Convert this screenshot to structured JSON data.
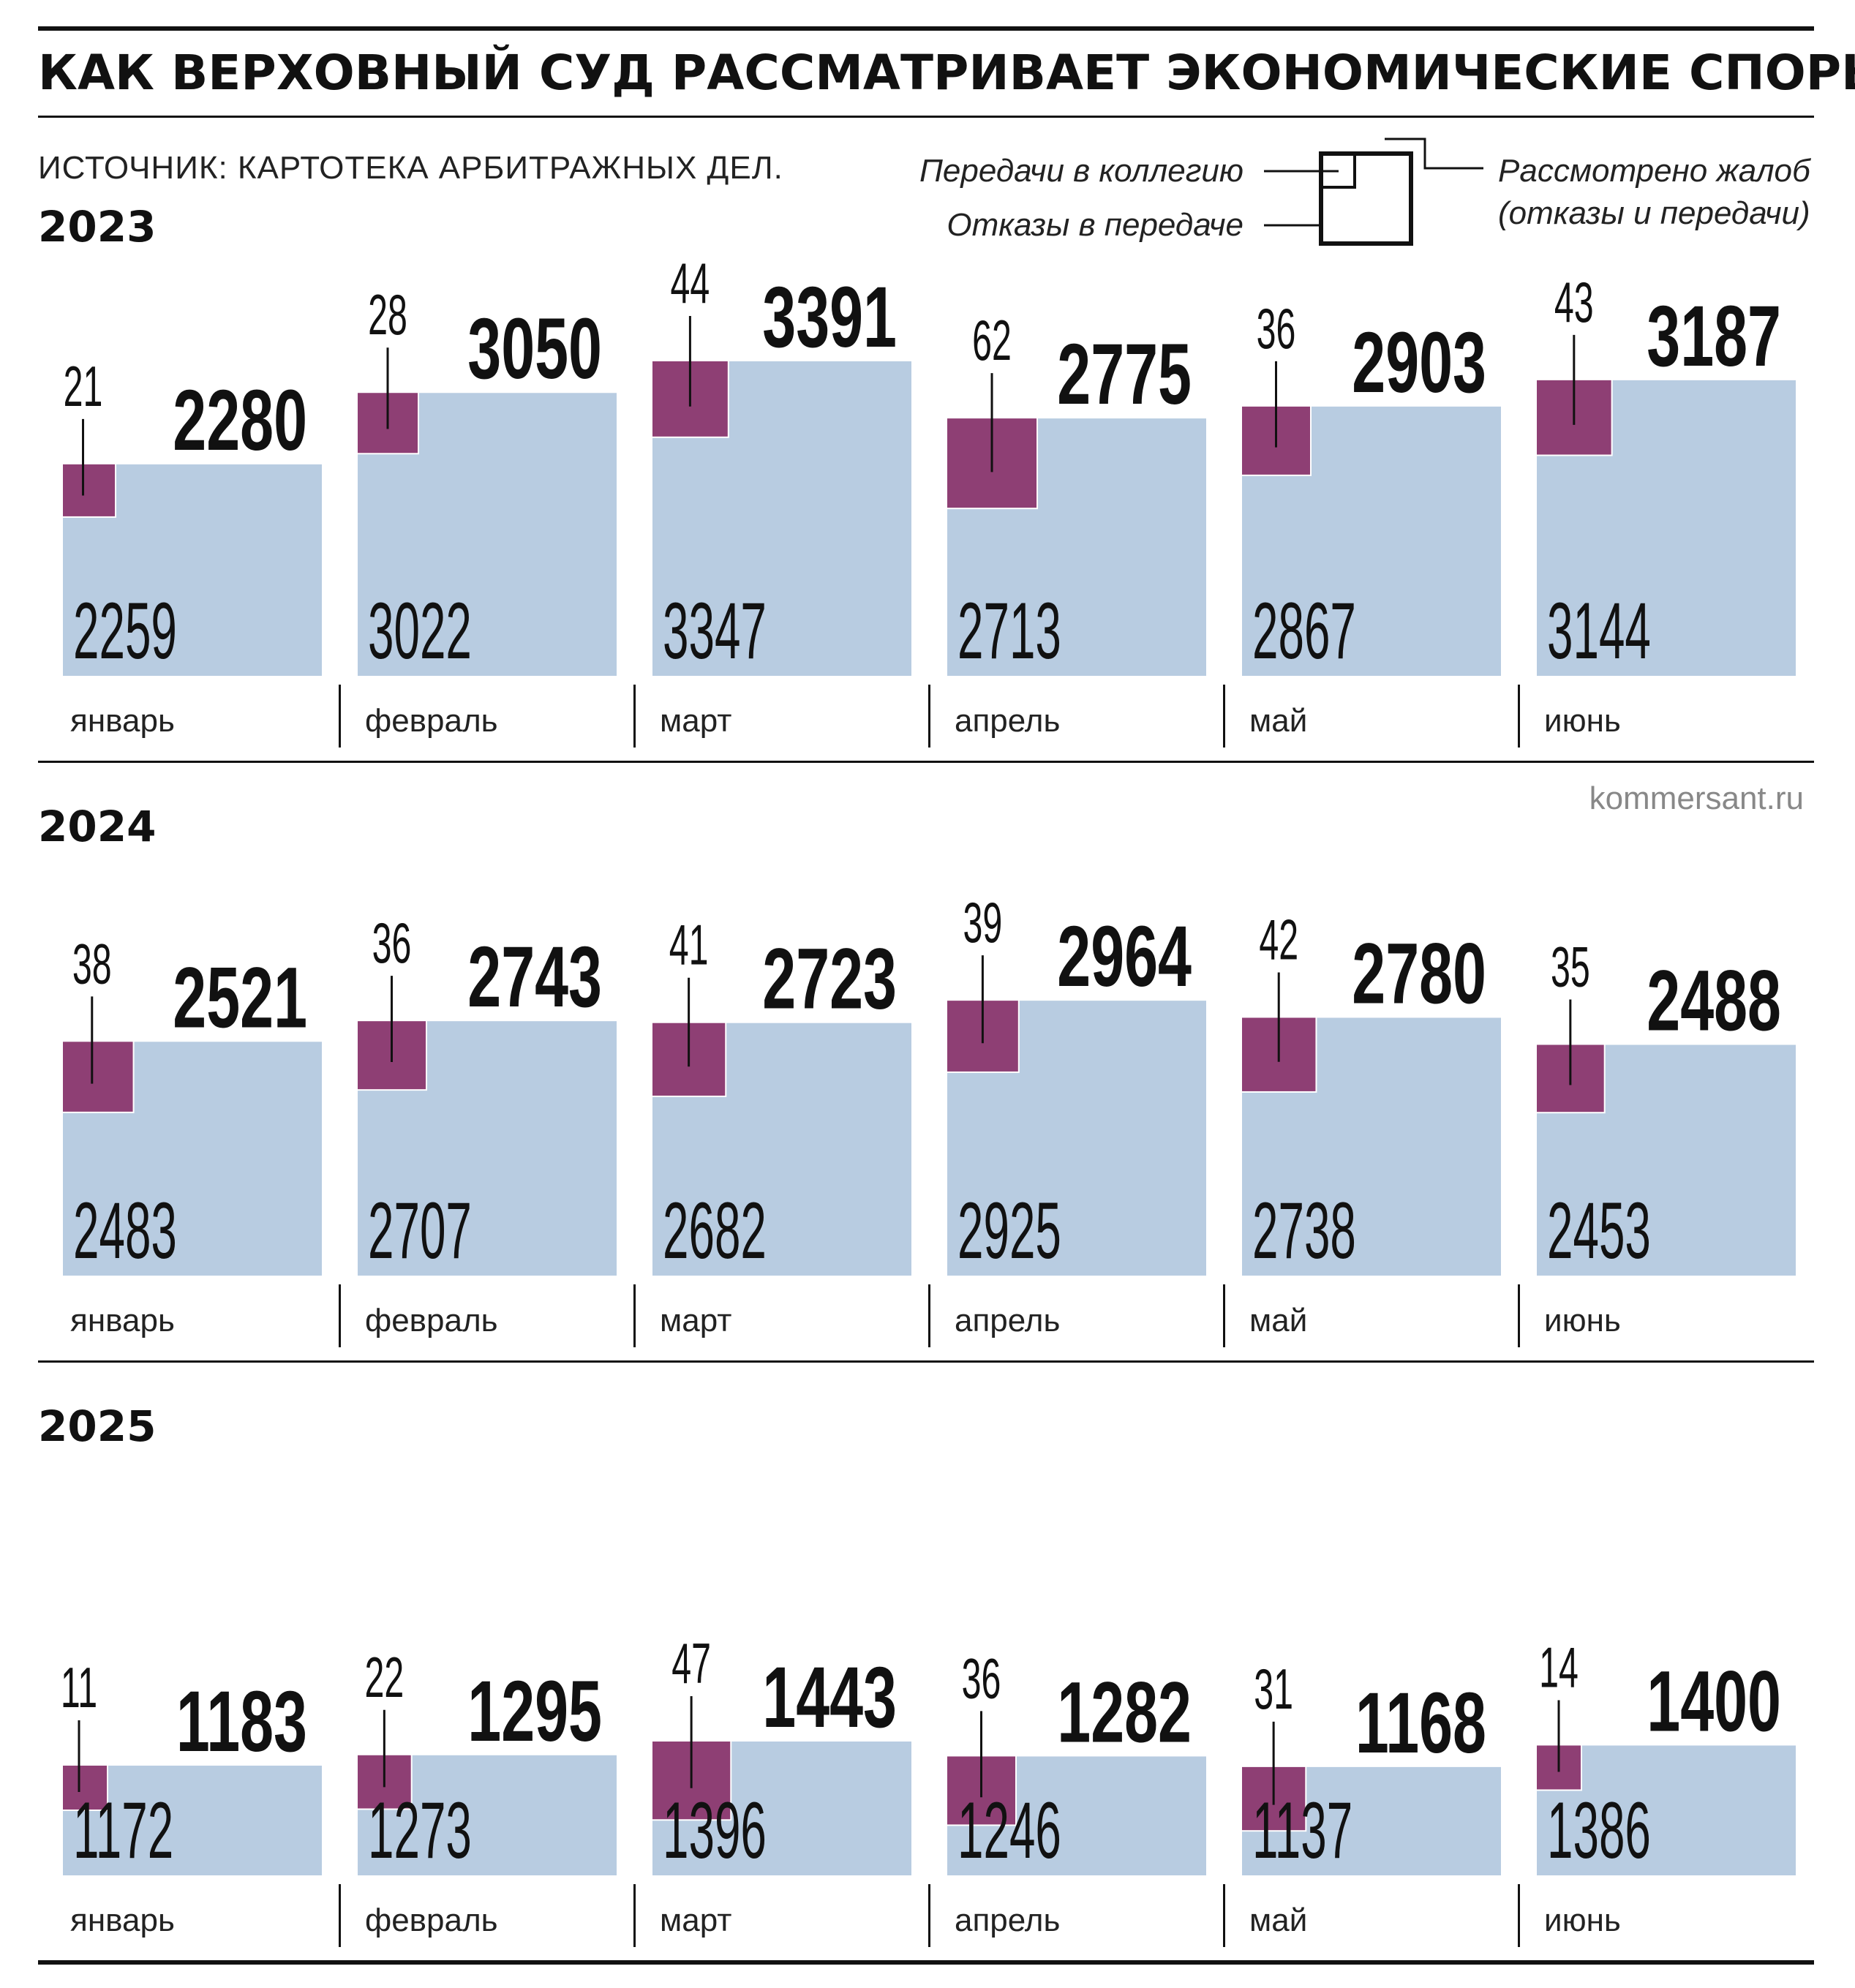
{
  "title": "КАК ВЕРХОВНЫЙ СУД РАССМАТРИВАЕТ ЭКОНОМИЧЕСКИЕ СПОРЫ",
  "source": "ИСТОЧНИК: КАРТОТЕКА АРБИТРАЖНЫХ ДЕЛ.",
  "credit": "kommersant.ru",
  "legend": {
    "transfers": "Передачи в коллегию",
    "refusals": "Отказы в передаче",
    "total_line1": "Рассмотрено жалоб",
    "total_line2": "(отказы и передачи)"
  },
  "colors": {
    "transfers": "#8e3f74",
    "refusals": "#b8cce1",
    "text": "#111111",
    "rule": "#111111"
  },
  "chart_data": [
    {
      "type": "area",
      "year": "2023",
      "categories": [
        "январь",
        "февраль",
        "март",
        "апрель",
        "май",
        "июнь"
      ],
      "series": [
        {
          "name": "Передачи в коллегию",
          "values": [
            21,
            28,
            44,
            62,
            36,
            43
          ]
        },
        {
          "name": "Отказы в передаче",
          "values": [
            2259,
            3022,
            3347,
            2713,
            2867,
            3144
          ]
        },
        {
          "name": "Рассмотрено жалоб (отказы и передачи)",
          "values": [
            2280,
            3050,
            3391,
            2775,
            2903,
            3187
          ]
        }
      ]
    },
    {
      "type": "area",
      "year": "2024",
      "categories": [
        "январь",
        "февраль",
        "март",
        "апрель",
        "май",
        "июнь"
      ],
      "series": [
        {
          "name": "Передачи в коллегию",
          "values": [
            38,
            36,
            41,
            39,
            42,
            35
          ]
        },
        {
          "name": "Отказы в передаче",
          "values": [
            2483,
            2707,
            2682,
            2925,
            2738,
            2453
          ]
        },
        {
          "name": "Рассмотрено жалоб (отказы и передачи)",
          "values": [
            2521,
            2743,
            2723,
            2964,
            2780,
            2488
          ]
        }
      ]
    },
    {
      "type": "area",
      "year": "2025",
      "categories": [
        "январь",
        "февраль",
        "март",
        "апрель",
        "май",
        "июнь"
      ],
      "series": [
        {
          "name": "Передачи в коллегию",
          "values": [
            11,
            22,
            47,
            36,
            31,
            14
          ]
        },
        {
          "name": "Отказы в передаче",
          "values": [
            1172,
            1273,
            1396,
            1246,
            1137,
            1386
          ]
        },
        {
          "name": "Рассмотрено жалоб (отказы и передачи)",
          "values": [
            1183,
            1295,
            1443,
            1282,
            1168,
            1400
          ]
        }
      ]
    }
  ]
}
